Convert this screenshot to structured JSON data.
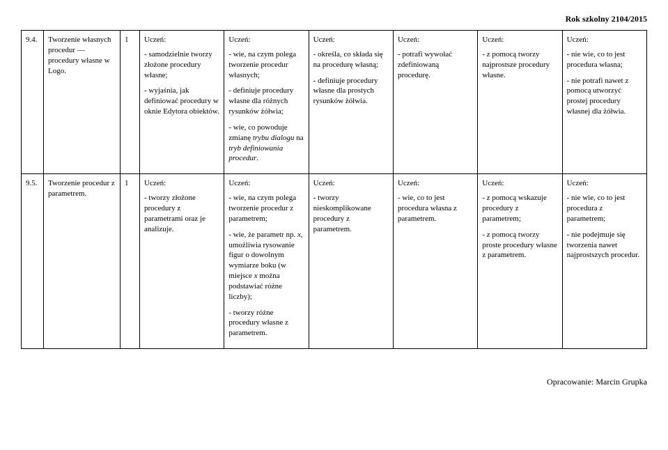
{
  "header": "Rok szkolny 2104/2015",
  "footer": "Opracowanie: Marcin Grupka",
  "labels": {
    "uczen": "Uczeń:"
  },
  "rows": [
    {
      "num": "9.4.",
      "topic": "Tworzenie własnych procedur — procedury własne w Logo.",
      "hours": "1",
      "c1": {
        "p1": "- samodzielnie tworzy złożone procedury własne;",
        "p2": "- wyjaśnia, jak definiować procedury w oknie Edytora obiektów."
      },
      "c2": {
        "p1": "- wie, na czym polega tworzenie procedur własnych;",
        "p2": "- definiuje procedury własne dla różnych rysunków żółwia;",
        "p3a": "- wie, co powoduje zmianę ",
        "p3i1": "trybu dialogu",
        "p3b": " na ",
        "p3i2": "tryb definiowania procedur",
        "p3c": "."
      },
      "c3": {
        "p1": "- określa, co składa się na procedurę własną;",
        "p2": "- definiuje procedury własne dla prostych rysunków żółwia."
      },
      "c4": {
        "p1": "- potrafi wywołać zdefiniowaną procedurę."
      },
      "c5": {
        "p1": "- z pomocą tworzy najprostsze procedury własne."
      },
      "c6": {
        "p1": "- nie wie, co to jest procedura własna;",
        "p2": "- nie potrafi nawet z pomocą utworzyć prostej procedury własnej dla żółwia."
      }
    },
    {
      "num": "9.5.",
      "topic": "Tworzenie procedur z parametrem.",
      "hours": "1",
      "c1": {
        "p1": "- tworzy złożone procedury z parametrami oraz je analizuje."
      },
      "c2": {
        "p1": "- wie, na czym polega tworzenie procedur z parametrem;",
        "p2a": "- wie, że parametr np. ",
        "p2i1": "x",
        "p2b": ", umożliwia rysowanie figur o dowolnym wymiarze boku (w miejsce ",
        "p2i2": "x",
        "p2c": " można podstawiać różne liczby);",
        "p3": "- tworzy różne procedury własne z parametrem."
      },
      "c3": {
        "p1": "- tworzy nieskomplikowane procedury z parametrem."
      },
      "c4": {
        "p1": "- wie, co to jest procedura własna z parametrem."
      },
      "c5": {
        "p1": "- z pomocą wskazuje procedury z parametrem;",
        "p2": "- z pomocą tworzy proste procedury własne z parametrem."
      },
      "c6": {
        "p1": "- nie wie, co to jest procedura z parametrem;",
        "p2": "- nie podejmuje się tworzenia nawet najprostszych procedur."
      }
    }
  ]
}
